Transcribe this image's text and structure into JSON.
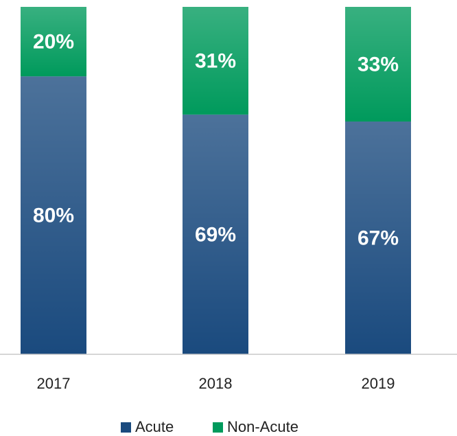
{
  "chart_data": {
    "type": "stacked_bar",
    "categories": [
      "2017",
      "2018",
      "2019"
    ],
    "series": [
      {
        "name": "Acute",
        "color": "#1a4a7e",
        "values": [
          80,
          69,
          67
        ],
        "value_labels": [
          "80%",
          "69%",
          "67%"
        ]
      },
      {
        "name": "Non-Acute",
        "color": "#009a5c",
        "values": [
          20,
          31,
          33
        ],
        "value_labels": [
          "20%",
          "31%",
          "33%"
        ]
      }
    ],
    "ylim": [
      0,
      100
    ],
    "grid": false
  }
}
